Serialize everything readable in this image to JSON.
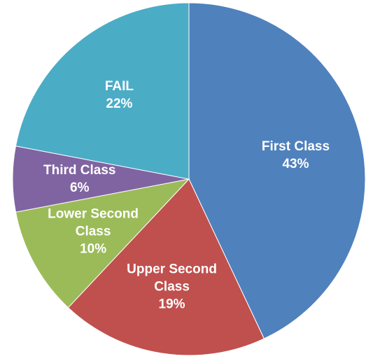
{
  "chart_data": {
    "type": "pie",
    "categories": [
      "First Class",
      "Upper Second Class",
      "Lower Second Class",
      "Third Class",
      "FAIL"
    ],
    "values": [
      43,
      19,
      10,
      6,
      22
    ],
    "value_labels": [
      "43%",
      "19%",
      "10%",
      "6%",
      "22%"
    ],
    "colors": [
      "#4f81bd",
      "#c0504d",
      "#9bbb59",
      "#8064a2",
      "#4bacc6"
    ]
  }
}
